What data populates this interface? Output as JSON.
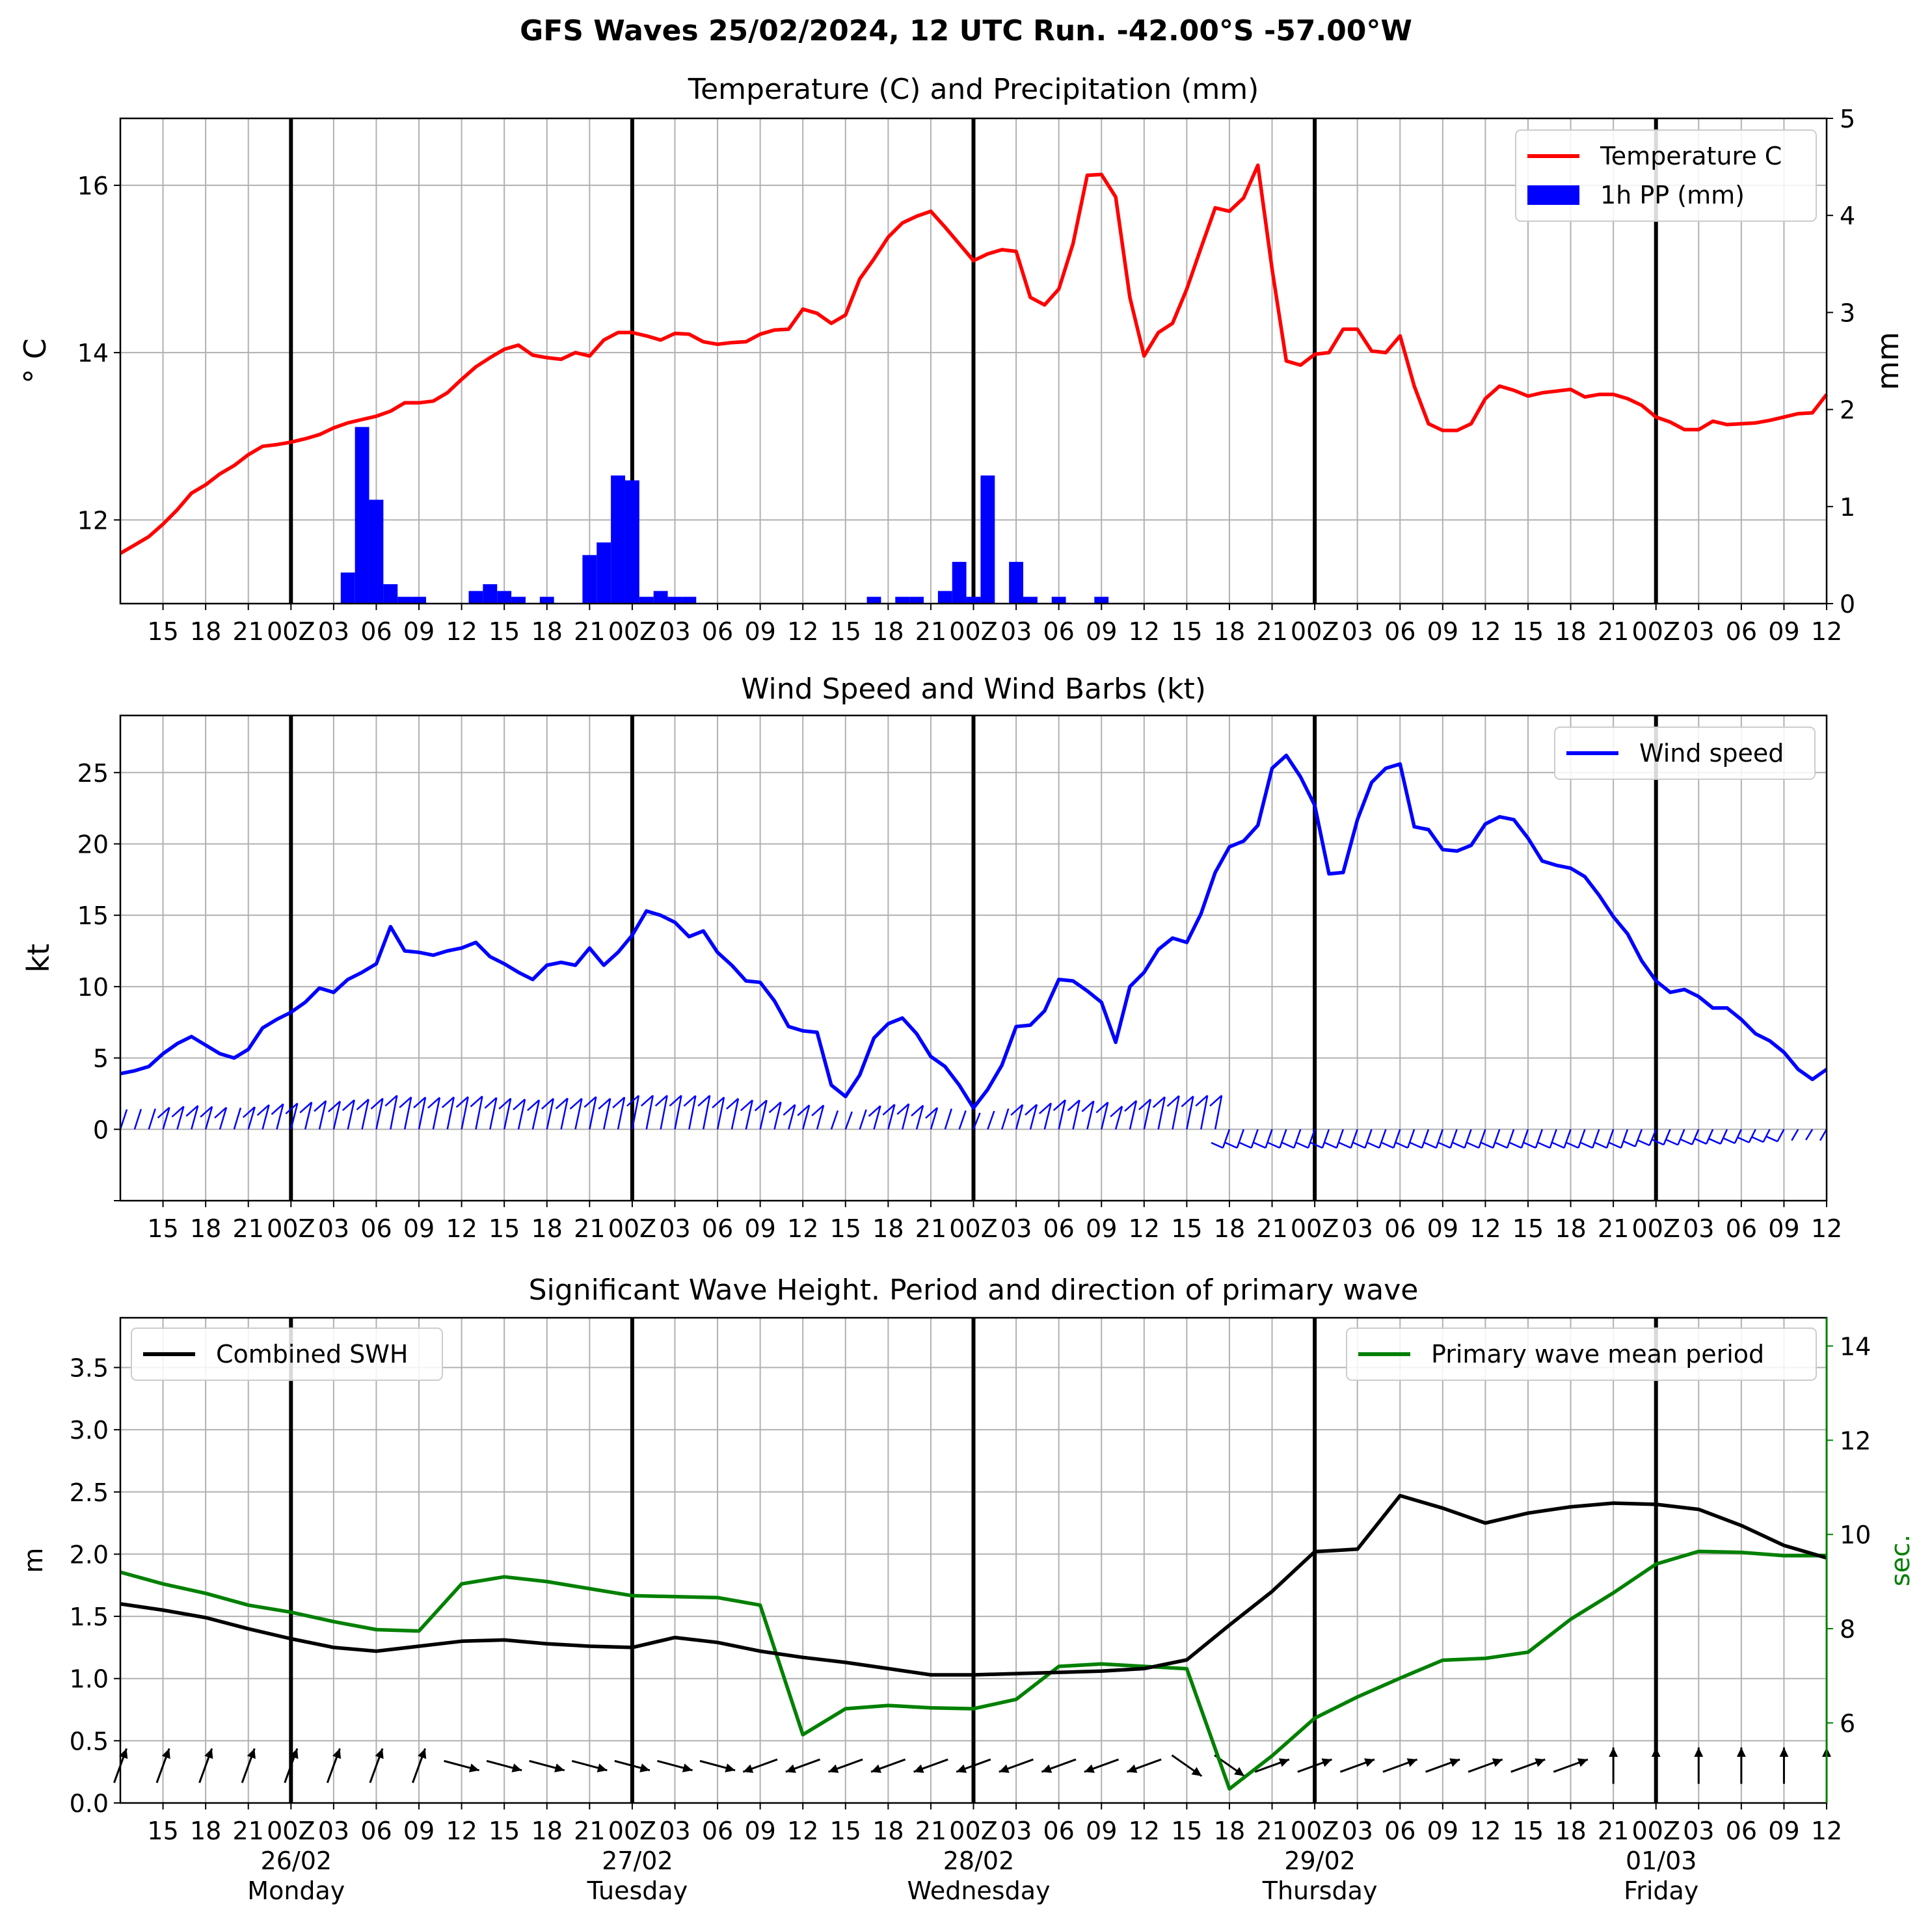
{
  "figure": {
    "suptitle": "GFS Waves 25/02/2024, 12 UTC Run. -42.00°S -57.00°W"
  },
  "colors": {
    "temperature": "#ff0000",
    "precip": "#0000ff",
    "wind": "#0000ff",
    "swh": "#000000",
    "period": "#008000",
    "grid": "#b0b0b0",
    "day_line": "#000000"
  },
  "x_axis": {
    "tick_labels": [
      "15",
      "18",
      "21",
      "00Z",
      "03",
      "06",
      "09",
      "12",
      "15",
      "18",
      "21",
      "00Z",
      "03",
      "06",
      "09",
      "12",
      "15",
      "18",
      "21",
      "00Z",
      "03",
      "06",
      "09",
      "12",
      "15",
      "18",
      "21",
      "00Z",
      "03",
      "06",
      "09",
      "12",
      "15",
      "18",
      "21",
      "00Z",
      "03",
      "06",
      "09",
      "12"
    ],
    "day_labels": [
      {
        "date": "26/02",
        "weekday": "Monday"
      },
      {
        "date": "27/02",
        "weekday": "Tuesday"
      },
      {
        "date": "28/02",
        "weekday": "Wednesday"
      },
      {
        "date": "29/02",
        "weekday": "Thursday"
      },
      {
        "date": "01/03",
        "weekday": "Friday"
      }
    ]
  },
  "chart_data": [
    {
      "type": "line",
      "title": "Temperature (C) and Precipitation (mm)",
      "xlabel": "",
      "ylabel": "$^\\circ$C",
      "ylabel_display": "° C",
      "ylabel_right": "mm",
      "x_unit": "hours after 25/02/2024 12 UTC",
      "xlim": [
        12,
        132
      ],
      "ylim": [
        11.0,
        16.8
      ],
      "yticks": [
        "12",
        "14",
        "16"
      ],
      "ylim_right": [
        0,
        5
      ],
      "yticks_right": [
        "0",
        "1",
        "2",
        "3",
        "4",
        "5"
      ],
      "grid": true,
      "legend": "top-right",
      "series": [
        {
          "name": "Temperature C",
          "type": "line",
          "x": [
            12,
            13,
            14,
            15,
            16,
            17,
            18,
            19,
            20,
            21,
            22,
            23,
            24,
            25,
            26,
            27,
            28,
            29,
            30,
            31,
            32,
            33,
            34,
            35,
            36,
            37,
            38,
            39,
            40,
            41,
            42,
            43,
            44,
            45,
            46,
            47,
            48,
            49,
            50,
            51,
            52,
            53,
            54,
            55,
            56,
            57,
            58,
            59,
            60,
            61,
            62,
            63,
            64,
            65,
            66,
            67,
            68,
            69,
            70,
            71,
            72,
            73,
            74,
            75,
            76,
            77,
            78,
            79,
            80,
            81,
            82,
            83,
            84,
            85,
            86,
            87,
            88,
            89,
            90,
            91,
            92,
            93,
            94,
            95,
            96,
            97,
            98,
            99,
            100,
            101,
            102,
            103,
            104,
            105,
            106,
            107,
            108,
            109,
            110,
            111,
            112,
            113,
            114,
            115,
            116,
            117,
            118,
            119,
            120,
            121,
            122,
            123,
            124,
            125,
            126,
            127,
            128,
            129,
            130,
            131,
            132
          ],
          "values": [
            11.6,
            11.7,
            11.8,
            11.95,
            12.12,
            12.32,
            12.42,
            12.55,
            12.65,
            12.78,
            12.88,
            12.9,
            12.93,
            12.97,
            13.02,
            13.1,
            13.16,
            13.2,
            13.24,
            13.3,
            13.4,
            13.4,
            13.42,
            13.52,
            13.68,
            13.83,
            13.94,
            14.04,
            14.09,
            13.97,
            13.94,
            13.92,
            14.0,
            13.96,
            14.15,
            14.24,
            14.24,
            14.2,
            14.15,
            14.23,
            14.22,
            14.13,
            14.1,
            14.12,
            14.13,
            14.22,
            14.27,
            14.28,
            14.52,
            14.47,
            14.35,
            14.45,
            14.88,
            15.12,
            15.38,
            15.55,
            15.63,
            15.69,
            15.5,
            15.3,
            15.1,
            15.18,
            15.23,
            15.21,
            14.66,
            14.57,
            14.76,
            15.3,
            16.12,
            16.13,
            15.86,
            14.66,
            13.96,
            14.24,
            14.35,
            14.76,
            15.25,
            15.73,
            15.69,
            15.85,
            16.24,
            15.0,
            13.9,
            13.85,
            13.98,
            14.0,
            14.28,
            14.28,
            14.02,
            14.0,
            14.2,
            13.6,
            13.15,
            13.07,
            13.07,
            13.15,
            13.45,
            13.6,
            13.55,
            13.48,
            13.52,
            13.54,
            13.56,
            13.47,
            13.5,
            13.5,
            13.45,
            13.37,
            13.23,
            13.17,
            13.08,
            13.08,
            13.18,
            13.14,
            13.15,
            13.16,
            13.19,
            13.23,
            13.27,
            13.28,
            13.5
          ]
        },
        {
          "name": "1h PP (mm)",
          "type": "bar",
          "x": [
            28,
            29,
            30,
            31,
            32,
            33,
            37,
            38,
            39,
            40,
            42,
            45,
            46,
            47,
            48,
            49,
            50,
            51,
            52,
            65,
            67,
            68,
            70,
            71,
            72,
            73,
            75,
            76,
            78,
            81
          ],
          "values": [
            0.32,
            1.82,
            1.07,
            0.2,
            0.07,
            0.07,
            0.13,
            0.2,
            0.13,
            0.07,
            0.07,
            0.5,
            0.63,
            1.32,
            1.27,
            0.07,
            0.13,
            0.07,
            0.07,
            0.07,
            0.07,
            0.07,
            0.13,
            0.43,
            0.07,
            1.32,
            0.43,
            0.07,
            0.07,
            0.07
          ]
        }
      ]
    },
    {
      "type": "line",
      "title": "Wind Speed and Wind Barbs (kt)",
      "xlabel": "",
      "ylabel": "kt",
      "x_unit": "hours after 25/02/2024 12 UTC",
      "xlim": [
        12,
        132
      ],
      "ylim": [
        -5,
        29
      ],
      "yticks": [
        "0",
        "5",
        "10",
        "15",
        "20",
        "25"
      ],
      "grid": true,
      "legend": "top-right",
      "series": [
        {
          "name": "Wind speed",
          "x": [
            12,
            13,
            14,
            15,
            16,
            17,
            18,
            19,
            20,
            21,
            22,
            23,
            24,
            25,
            26,
            27,
            28,
            29,
            30,
            31,
            32,
            33,
            34,
            35,
            36,
            37,
            38,
            39,
            40,
            41,
            42,
            43,
            44,
            45,
            46,
            47,
            48,
            49,
            50,
            51,
            52,
            53,
            54,
            55,
            56,
            57,
            58,
            59,
            60,
            61,
            62,
            63,
            64,
            65,
            66,
            67,
            68,
            69,
            70,
            71,
            72,
            73,
            74,
            75,
            76,
            77,
            78,
            79,
            80,
            81,
            82,
            83,
            84,
            85,
            86,
            87,
            88,
            89,
            90,
            91,
            92,
            93,
            94,
            95,
            96,
            97,
            98,
            99,
            100,
            101,
            102,
            103,
            104,
            105,
            106,
            107,
            108,
            109,
            110,
            111,
            112,
            113,
            114,
            115,
            116,
            117,
            118,
            119,
            120,
            121,
            122,
            123,
            124,
            125,
            126,
            127,
            128,
            129,
            130,
            131,
            132
          ],
          "values": [
            3.9,
            4.1,
            4.4,
            5.3,
            6.0,
            6.5,
            5.9,
            5.3,
            5.0,
            5.6,
            7.1,
            7.7,
            8.2,
            8.9,
            9.9,
            9.6,
            10.5,
            11.0,
            11.6,
            14.2,
            12.5,
            12.4,
            12.2,
            12.5,
            12.7,
            13.1,
            12.1,
            11.6,
            11.0,
            10.5,
            11.5,
            11.7,
            11.5,
            12.7,
            11.5,
            12.4,
            13.6,
            15.3,
            15.0,
            14.5,
            13.5,
            13.9,
            12.4,
            11.5,
            10.4,
            10.3,
            9.0,
            7.2,
            6.9,
            6.8,
            3.1,
            2.3,
            3.8,
            6.4,
            7.4,
            7.8,
            6.7,
            5.1,
            4.4,
            3.1,
            1.5,
            2.8,
            4.5,
            7.2,
            7.3,
            8.3,
            10.5,
            10.4,
            9.7,
            8.9,
            6.1,
            10.0,
            11.0,
            12.6,
            13.4,
            13.1,
            15.1,
            18.0,
            19.8,
            20.2,
            21.3,
            25.3,
            26.2,
            24.7,
            22.7,
            17.9,
            18.0,
            21.7,
            24.3,
            25.3,
            25.6,
            21.2,
            21.0,
            19.6,
            19.5,
            19.9,
            21.4,
            21.9,
            21.7,
            20.4,
            18.8,
            18.5,
            18.3,
            17.7,
            16.4,
            14.9,
            13.7,
            11.8,
            10.4,
            9.6,
            9.8,
            9.3,
            8.5,
            8.5,
            7.7,
            6.7,
            6.2,
            5.4,
            4.2,
            3.5,
            4.2
          ]
        }
      ],
      "barbs_note": "wind barbs drawn along the zero line"
    },
    {
      "type": "line",
      "title": "Significant Wave Height. Period and direction of primary wave",
      "xlabel": "",
      "ylabel": "m",
      "ylabel_right": "sec.",
      "x_unit": "hours after 25/02/2024 12 UTC",
      "xlim": [
        12,
        132
      ],
      "ylim": [
        0,
        3.9
      ],
      "yticks": [
        "0.0",
        "0.5",
        "1.0",
        "1.5",
        "2.0",
        "2.5",
        "3.0",
        "3.5"
      ],
      "ylim_right": [
        4.3,
        14.6
      ],
      "yticks_right": [
        "6",
        "8",
        "10",
        "12",
        "14"
      ],
      "grid": true,
      "legends": [
        "top-left",
        "top-right"
      ],
      "series": [
        {
          "name": "Combined SWH",
          "axis": "left",
          "x": [
            12,
            15,
            18,
            21,
            24,
            27,
            30,
            33,
            36,
            39,
            42,
            45,
            48,
            51,
            54,
            57,
            60,
            63,
            66,
            69,
            72,
            75,
            78,
            81,
            84,
            87,
            90,
            93,
            96,
            99,
            102,
            105,
            108,
            111,
            114,
            117,
            120,
            123,
            126,
            129,
            132
          ],
          "values": [
            1.6,
            1.55,
            1.49,
            1.4,
            1.32,
            1.25,
            1.22,
            1.26,
            1.3,
            1.31,
            1.28,
            1.26,
            1.25,
            1.33,
            1.29,
            1.22,
            1.17,
            1.13,
            1.08,
            1.03,
            1.03,
            1.04,
            1.05,
            1.06,
            1.08,
            1.15,
            1.43,
            1.7,
            2.02,
            2.04,
            2.47,
            2.37,
            2.25,
            2.33,
            2.38,
            2.41,
            2.4,
            2.36,
            2.23,
            2.07,
            1.97
          ]
        },
        {
          "name": "Primary wave mean period",
          "axis": "right",
          "x": [
            12,
            15,
            18,
            21,
            24,
            27,
            30,
            33,
            36,
            39,
            42,
            45,
            48,
            51,
            54,
            57,
            60,
            63,
            66,
            69,
            72,
            75,
            78,
            81,
            84,
            87,
            90,
            93,
            96,
            99,
            102,
            105,
            108,
            111,
            114,
            117,
            120,
            123,
            126,
            129,
            132
          ],
          "values": [
            9.2,
            8.95,
            8.75,
            8.5,
            8.35,
            8.15,
            7.98,
            7.95,
            8.95,
            9.1,
            9.0,
            8.85,
            8.7,
            8.68,
            8.66,
            8.5,
            5.75,
            6.3,
            6.37,
            6.32,
            6.3,
            6.5,
            7.2,
            7.25,
            7.2,
            7.15,
            4.6,
            5.3,
            6.1,
            6.55,
            6.95,
            7.33,
            7.37,
            7.5,
            8.2,
            8.76,
            9.37,
            9.64,
            9.62,
            9.55,
            9.55
          ]
        }
      ],
      "direction_arrows_note": "primary wave direction arrows drawn near 0.3 m"
    }
  ]
}
